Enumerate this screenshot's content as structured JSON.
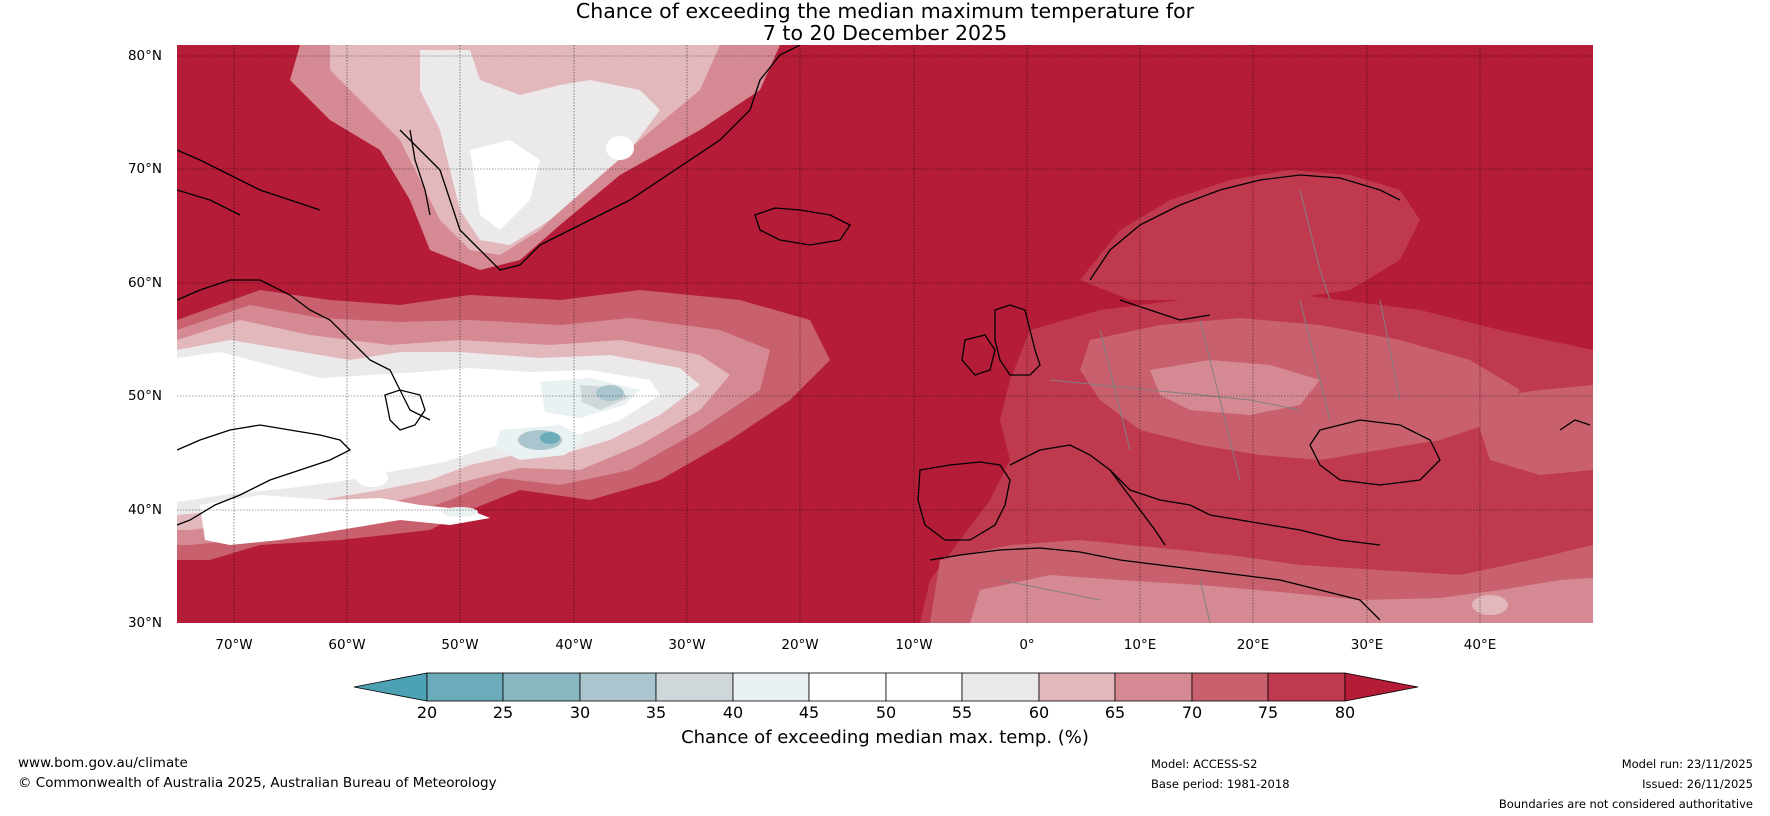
{
  "title": {
    "line1": "Chance of exceeding the median maximum temperature for",
    "line2": "7 to 20 December 2025"
  },
  "map": {
    "lat_labels": [
      "80°N",
      "70°N",
      "60°N",
      "50°N",
      "40°N",
      "30°N"
    ],
    "lon_labels": [
      "70°W",
      "60°W",
      "50°W",
      "40°W",
      "30°W",
      "20°W",
      "10°W",
      "0°",
      "10°E",
      "20°E",
      "30°E",
      "40°E"
    ],
    "extent": {
      "lon_min": -75,
      "lon_max": 50,
      "lat_min": 30,
      "lat_max": 81
    },
    "colors": {
      "above_80": "#b41c37",
      "c75_80": "#bf3a4e",
      "c70_75": "#c8606d",
      "c65_70": "#d58a93",
      "c60_65": "#e2b8bd",
      "c55_60": "#ebe9e9",
      "c50_55": "#ffffff",
      "c40_45": "#e9f1f3",
      "c35_40": "#cfd7da",
      "c30_35": "#aac5cd",
      "c25_30": "#8ab6c2",
      "c20_25": "#6cacba",
      "below_20": "#4ca2b4",
      "coastline": "#000000",
      "border": "#808080"
    }
  },
  "colorbar": {
    "ticks": [
      "20",
      "25",
      "30",
      "35",
      "40",
      "45",
      "50",
      "55",
      "60",
      "65",
      "70",
      "75",
      "80"
    ],
    "label": "Chance of exceeding median max. temp. (%)",
    "colors": [
      "#4ca2b4",
      "#6cacba",
      "#8ab6c2",
      "#aac5cd",
      "#cfd7da",
      "#e9f1f3",
      "#ffffff",
      "#ffffff",
      "#ebe9e9",
      "#e2b8bd",
      "#d58a93",
      "#c8606d",
      "#bf3a4e",
      "#b41c37"
    ]
  },
  "footer": {
    "website": "www.bom.gov.au/climate",
    "copyright": "© Commonwealth of Australia 2025, Australian Bureau of Meteorology",
    "model": "Model: ACCESS-S2",
    "base_period": "Base period: 1981-2018",
    "model_run": "Model run: 23/11/2025",
    "issued": "Issued: 26/11/2025",
    "disclaimer": "Boundaries are not considered authoritative"
  }
}
